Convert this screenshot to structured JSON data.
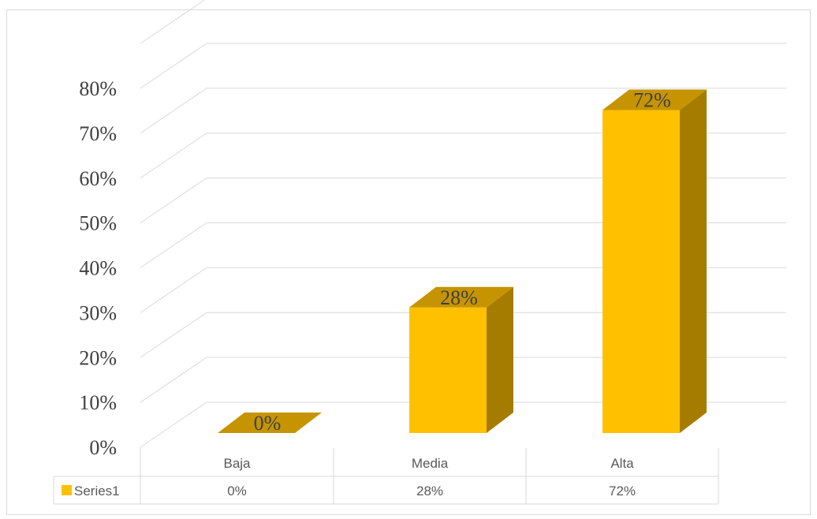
{
  "chart_data": {
    "type": "bar",
    "style": "3d-column",
    "categories": [
      "Baja",
      "Media",
      "Alta"
    ],
    "series": [
      {
        "name": "Series1",
        "values": [
          0,
          28,
          72
        ],
        "labels": [
          "0%",
          "28%",
          "72%"
        ]
      }
    ],
    "ylim": [
      0,
      80
    ],
    "yticks": [
      0,
      10,
      20,
      30,
      40,
      50,
      60,
      70,
      80
    ],
    "ytick_labels": [
      "0%",
      "10%",
      "20%",
      "30%",
      "40%",
      "50%",
      "60%",
      "70%",
      "80%"
    ],
    "title": "",
    "xlabel": "",
    "ylabel": "",
    "grid": true,
    "legend": "data-table",
    "colors": {
      "bar_front": "#FFC000",
      "bar_side": "#A67C00",
      "bar_top": "#C69400",
      "gridline": "#D9D9D9",
      "text": "#404040",
      "table_text": "#595959",
      "border": "#D9D9D9"
    }
  }
}
